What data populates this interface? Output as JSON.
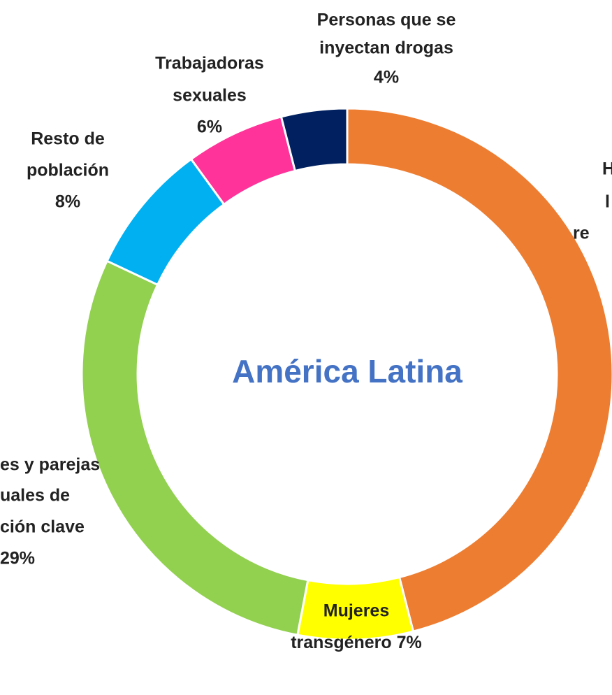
{
  "chart_data": {
    "type": "donut",
    "center_text": "América Latina",
    "labels": [
      [
        "H",
        "l",
        "re"
      ],
      [
        "Mujeres",
        "transgénero"
      ],
      [
        "es y parejas",
        "uales de",
        "ción clave"
      ],
      [
        "Resto de",
        "población"
      ],
      [
        "Trabajadoras",
        "sexuales"
      ],
      [
        "Personas que se",
        "inyectan drogas"
      ]
    ],
    "values": [
      46,
      7,
      29,
      8,
      6,
      4
    ],
    "value_labels": [
      null,
      "7%",
      "29%",
      "8%",
      "6%",
      "4%"
    ],
    "colors": [
      "#ed7d31",
      "#ffff00",
      "#92d050",
      "#00b0f0",
      "#ff3399",
      "#002060"
    ]
  }
}
